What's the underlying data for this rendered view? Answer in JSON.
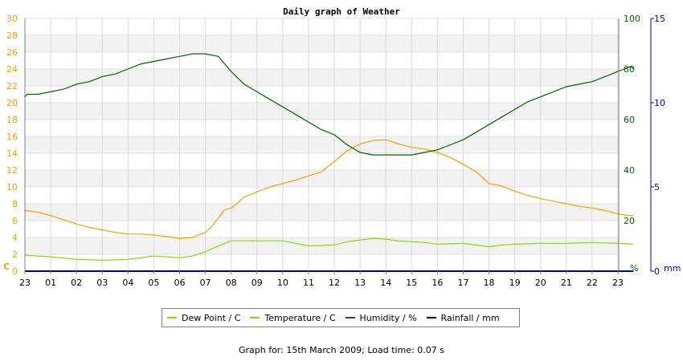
{
  "chart_data": {
    "type": "line",
    "title": "Daily graph of Weather",
    "x_ticks": [
      "23",
      "01",
      "02",
      "03",
      "04",
      "05",
      "06",
      "07",
      "08",
      "09",
      "10",
      "11",
      "12",
      "13",
      "14",
      "15",
      "16",
      "17",
      "18",
      "19",
      "20",
      "21",
      "22",
      "23"
    ],
    "axes": {
      "left": {
        "unit_label": "C",
        "min": 0,
        "max": 30,
        "step": 2,
        "color": "#f2a000"
      },
      "right1": {
        "unit_label": "%",
        "min": 0,
        "max": 100,
        "step": 20,
        "color": "#006400"
      },
      "right2": {
        "unit_label": "mm",
        "min": 0,
        "max": 15,
        "step": 5,
        "color": "#0000aa"
      }
    },
    "series": [
      {
        "name": "Dew Point / C",
        "axis": "left",
        "color": "#80e000",
        "x": [
          0,
          1,
          2,
          3,
          4,
          5,
          6,
          6.5,
          7,
          7.5,
          8,
          9,
          10,
          11,
          12,
          12.5,
          13,
          13.5,
          14,
          14.5,
          15,
          15.5,
          16,
          17,
          17.5,
          18,
          18.5,
          19,
          20,
          21,
          22,
          23,
          23.6
        ],
        "y": [
          1.9,
          1.7,
          1.4,
          1.3,
          1.4,
          1.8,
          1.6,
          1.8,
          2.3,
          3.0,
          3.6,
          3.6,
          3.6,
          3.0,
          3.1,
          3.5,
          3.7,
          3.9,
          3.8,
          3.6,
          3.5,
          3.4,
          3.2,
          3.3,
          3.1,
          2.9,
          3.1,
          3.2,
          3.3,
          3.3,
          3.4,
          3.3,
          3.2
        ]
      },
      {
        "name": "Temperature / C",
        "axis": "left",
        "color": "#f2a000",
        "x": [
          0,
          0.5,
          1,
          1.5,
          2,
          2.5,
          3,
          3.5,
          4,
          4.5,
          5,
          5.5,
          6,
          6.5,
          7,
          7.25,
          7.5,
          7.75,
          8,
          8.25,
          8.5,
          9,
          9.5,
          10,
          10.5,
          11,
          11.5,
          12,
          12.5,
          13,
          13.5,
          14,
          14.5,
          15,
          15.5,
          16,
          16.5,
          17,
          17.5,
          18,
          18.5,
          19,
          19.5,
          20,
          20.5,
          21,
          21.5,
          22,
          22.5,
          23,
          23.4,
          23.6
        ],
        "y": [
          7.2,
          7.0,
          6.6,
          6.1,
          5.6,
          5.2,
          4.9,
          4.6,
          4.4,
          4.4,
          4.3,
          4.1,
          3.9,
          4.0,
          4.6,
          5.3,
          6.3,
          7.3,
          7.5,
          8.1,
          8.8,
          9.4,
          10.0,
          10.4,
          10.8,
          11.3,
          11.8,
          13.0,
          14.3,
          15.1,
          15.5,
          15.6,
          15.1,
          14.7,
          14.5,
          14.1,
          13.5,
          12.7,
          11.8,
          10.4,
          10.1,
          9.5,
          9.0,
          8.6,
          8.3,
          8.0,
          7.7,
          7.5,
          7.2,
          6.8,
          6.6,
          6.6
        ]
      },
      {
        "name": "Humidity / %",
        "axis": "right1",
        "color": "#006400",
        "x": [
          0,
          0.1,
          0.5,
          1,
          1.5,
          2,
          2.5,
          3,
          3.5,
          4,
          4.5,
          5,
          5.5,
          6,
          6.5,
          7,
          7.5,
          8,
          8.5,
          9,
          9.5,
          10,
          10.5,
          11,
          11.5,
          12,
          12.5,
          13,
          13.5,
          14,
          14.5,
          15,
          15.5,
          16,
          16.5,
          17,
          17.5,
          18,
          18.5,
          19,
          19.5,
          20,
          20.5,
          21,
          21.5,
          22,
          22.5,
          23,
          23.5,
          23.6
        ],
        "y": [
          69,
          70,
          70,
          71,
          72,
          74,
          75,
          77,
          78,
          80,
          82,
          83,
          84,
          85,
          86,
          86,
          85,
          79,
          74,
          71,
          68,
          65,
          62,
          59,
          56,
          54,
          50,
          47,
          46,
          46,
          46,
          46,
          47,
          48,
          50,
          52,
          55,
          58,
          61,
          64,
          67,
          69,
          71,
          73,
          74,
          75,
          77,
          79,
          81,
          80
        ]
      },
      {
        "name": "Rainfall / mm",
        "axis": "right2",
        "color": "#0000aa",
        "x": [
          0,
          23.6
        ],
        "y": [
          0,
          0
        ]
      }
    ],
    "legend_position": "bottom",
    "grid": true
  },
  "footer": "Graph for: 15th March 2009; Load time: 0.07 s"
}
